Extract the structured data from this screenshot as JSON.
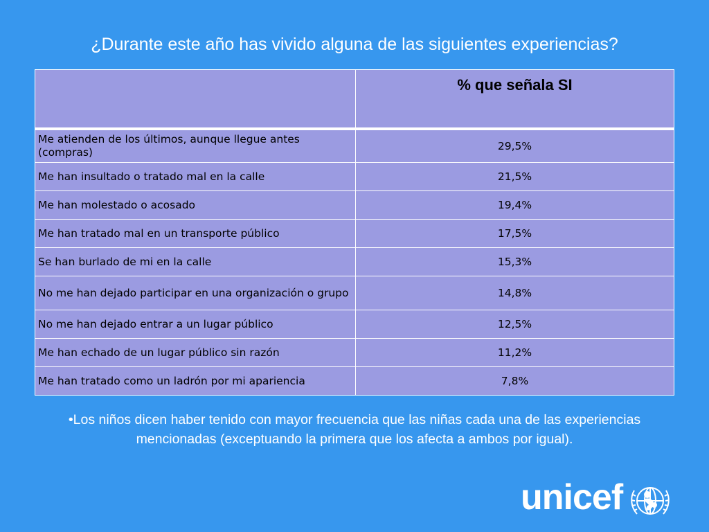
{
  "title": "¿Durante este año has vivido alguna de las siguientes experiencias?",
  "table": {
    "header": [
      "",
      "% que señala SI"
    ],
    "rows": [
      {
        "label": "Me atienden de los últimos, aunque llegue antes (compras)",
        "value": "29,5%"
      },
      {
        "label": "Me han insultado o tratado mal en la calle",
        "value": "21,5%"
      },
      {
        "label": "Me han molestado o acosado",
        "value": "19,4%"
      },
      {
        "label": "Me han tratado mal en un transporte público",
        "value": "17,5%"
      },
      {
        "label": "Se han burlado de mi en la calle",
        "value": "15,3%"
      },
      {
        "label": "No me han dejado participar en una organización o grupo",
        "value": "14,8%"
      },
      {
        "label": "No me han dejado entrar a un lugar público",
        "value": "12,5%"
      },
      {
        "label": "Me han echado de un lugar público sin razón",
        "value": "11,2%"
      },
      {
        "label": "Me han tratado como un ladrón por mi apariencia",
        "value": "7,8%"
      }
    ]
  },
  "note": "•Los niños dicen haber tenido con mayor frecuencia que las niñas cada una de las experiencias mencionadas (exceptuando la primera que los afecta a ambos por igual).",
  "logo": {
    "text": "unicef",
    "icon": "unicef-emblem-icon"
  },
  "colors": {
    "background": "#3797ee",
    "table": "#9b9be1",
    "text": "#ffffff"
  }
}
